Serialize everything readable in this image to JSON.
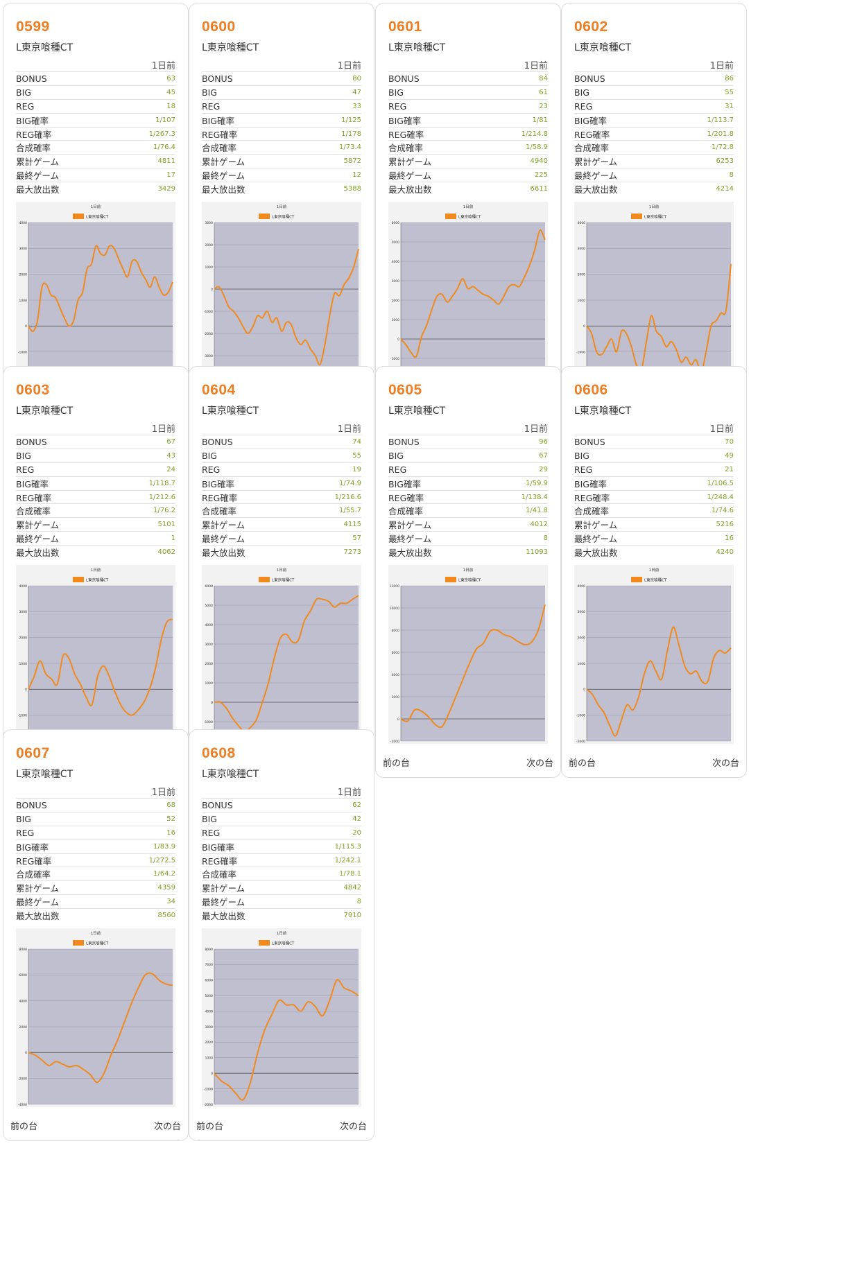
{
  "labels": {
    "day": "1日前",
    "prev": "前の台",
    "next": "次の台",
    "row_labels": [
      "BONUS",
      "BIG",
      "REG",
      "BIG確率",
      "REG確率",
      "合成確率",
      "累計ゲーム",
      "最終ゲーム",
      "最大放出数"
    ]
  },
  "colors": {
    "accent": "#ef7d22",
    "value": "#7ea423",
    "plot_bg": "#c0bfcf",
    "line": "#f08a1e"
  },
  "machines": [
    {
      "num": "0599",
      "model": "L東京喰種CT",
      "stats": [
        "63",
        "45",
        "18",
        "1/107",
        "1/267.3",
        "1/76.4",
        "4811",
        "17",
        "3429"
      ],
      "chart": {
        "title": "1日前",
        "legend": "L東京喰種CT",
        "ymin": -2000,
        "ymax": 4000,
        "step": 1000,
        "values": [
          0,
          -200,
          200,
          1500,
          1600,
          1200,
          1100,
          700,
          300,
          0,
          200,
          1000,
          1300,
          2200,
          2400,
          3100,
          2800,
          2750,
          3100,
          3000,
          2600,
          2200,
          1900,
          2500,
          2500,
          2100,
          1800,
          1500,
          1900,
          1500,
          1200,
          1300,
          1700
        ]
      }
    },
    {
      "num": "0600",
      "model": "L東京喰種CT",
      "stats": [
        "80",
        "47",
        "33",
        "1/125",
        "1/178",
        "1/73.4",
        "5872",
        "12",
        "5388"
      ],
      "chart": {
        "title": "1日前",
        "legend": "L東京喰種CT",
        "ymin": -4000,
        "ymax": 3000,
        "step": 1000,
        "values": [
          0,
          100,
          -300,
          -800,
          -1000,
          -1300,
          -1700,
          -2000,
          -1700,
          -1200,
          -1300,
          -1000,
          -1500,
          -1300,
          -1900,
          -1500,
          -1600,
          -2200,
          -2500,
          -2300,
          -2700,
          -3000,
          -3400,
          -2500,
          -1200,
          -200,
          -300,
          200,
          500,
          1000,
          1800
        ]
      }
    },
    {
      "num": "0601",
      "model": "L東京喰種CT",
      "stats": [
        "84",
        "61",
        "23",
        "1/81",
        "1/214.8",
        "1/58.9",
        "4940",
        "225",
        "6611"
      ],
      "chart": {
        "title": "1日前",
        "legend": "L東京喰種CT",
        "ymin": -2000,
        "ymax": 6000,
        "step": 1000,
        "values": [
          0,
          -300,
          -700,
          -900,
          100,
          700,
          1500,
          2200,
          2300,
          1900,
          2200,
          2600,
          3100,
          2600,
          2700,
          2500,
          2300,
          2200,
          2000,
          1800,
          2200,
          2700,
          2800,
          2700,
          3200,
          3800,
          4600,
          5600,
          5100
        ]
      }
    },
    {
      "num": "0602",
      "model": "L東京喰種CT",
      "stats": [
        "86",
        "55",
        "31",
        "1/113.7",
        "1/201.8",
        "1/72.8",
        "6253",
        "8",
        "4214"
      ],
      "chart": {
        "title": "1日前",
        "legend": "L東京喰種CT",
        "ymin": -2000,
        "ymax": 4000,
        "step": 1000,
        "values": [
          0,
          -300,
          -1000,
          -1100,
          -800,
          -500,
          -1000,
          -200,
          -300,
          -800,
          -1500,
          -1700,
          -600,
          400,
          -200,
          -400,
          -800,
          -600,
          -900,
          -1400,
          -1200,
          -1500,
          -1300,
          -1800,
          -1000,
          0,
          200,
          500,
          600,
          2400
        ]
      }
    },
    {
      "num": "0603",
      "model": "L東京喰種CT",
      "stats": [
        "67",
        "43",
        "24",
        "1/118.7",
        "1/212.6",
        "1/76.2",
        "5101",
        "1",
        "4062"
      ],
      "chart": {
        "title": "1日前",
        "legend": "L東京喰種CT",
        "ymin": -2000,
        "ymax": 4000,
        "step": 1000,
        "values": [
          0,
          500,
          1100,
          600,
          400,
          200,
          1300,
          1200,
          600,
          200,
          -300,
          -600,
          500,
          900,
          500,
          -100,
          -600,
          -900,
          -1000,
          -800,
          -500,
          0,
          800,
          1900,
          2600,
          2700
        ]
      }
    },
    {
      "num": "0604",
      "model": "L東京喰種CT",
      "stats": [
        "74",
        "55",
        "19",
        "1/74.9",
        "1/216.6",
        "1/55.7",
        "4115",
        "57",
        "7273"
      ],
      "chart": {
        "title": "1日前",
        "legend": "L東京喰種CT",
        "ymin": -2000,
        "ymax": 6000,
        "step": 1000,
        "values": [
          0,
          0,
          -300,
          -800,
          -1200,
          -1500,
          -1300,
          -900,
          0,
          1000,
          2300,
          3300,
          3500,
          3100,
          3200,
          4200,
          4700,
          5300,
          5300,
          5200,
          4900,
          5100,
          5100,
          5300,
          5500
        ]
      }
    },
    {
      "num": "0605",
      "model": "L東京喰種CT",
      "stats": [
        "96",
        "67",
        "29",
        "1/59.9",
        "1/138.4",
        "1/41.8",
        "4012",
        "8",
        "11093"
      ],
      "chart": {
        "title": "1日前",
        "legend": "L東京喰種CT",
        "ymin": -2000,
        "ymax": 12000,
        "step": 2000,
        "values": [
          0,
          -200,
          800,
          700,
          200,
          -500,
          -700,
          500,
          2000,
          3500,
          5000,
          6300,
          6800,
          7900,
          8000,
          7600,
          7400,
          7000,
          6700,
          6900,
          8000,
          10300
        ]
      }
    },
    {
      "num": "0606",
      "model": "L東京喰種CT",
      "stats": [
        "70",
        "49",
        "21",
        "1/106.5",
        "1/248.4",
        "1/74.6",
        "5216",
        "16",
        "4240"
      ],
      "chart": {
        "title": "1日前",
        "legend": "L東京喰種CT",
        "ymin": -2000,
        "ymax": 4000,
        "step": 1000,
        "values": [
          0,
          -200,
          -600,
          -900,
          -1400,
          -1800,
          -1200,
          -600,
          -800,
          -300,
          600,
          1100,
          700,
          400,
          1500,
          2400,
          1700,
          900,
          600,
          700,
          300,
          300,
          1200,
          1500,
          1400,
          1600
        ]
      }
    },
    {
      "num": "0607",
      "model": "L東京喰種CT",
      "stats": [
        "68",
        "52",
        "16",
        "1/83.9",
        "1/272.5",
        "1/64.2",
        "4359",
        "34",
        "8560"
      ],
      "chart": {
        "title": "1日前",
        "legend": "L東京喰種CT",
        "ymin": -4000,
        "ymax": 8000,
        "step": 2000,
        "values": [
          0,
          -200,
          -600,
          -1000,
          -700,
          -900,
          -1100,
          -1000,
          -1300,
          -1700,
          -2300,
          -1600,
          -200,
          1000,
          2400,
          3800,
          5000,
          6000,
          6100,
          5600,
          5300,
          5200
        ]
      }
    },
    {
      "num": "0608",
      "model": "L東京喰種CT",
      "stats": [
        "62",
        "42",
        "20",
        "1/115.3",
        "1/242.1",
        "1/78.1",
        "4842",
        "8",
        "7910"
      ],
      "chart": {
        "title": "1日前",
        "legend": "L東京喰種CT",
        "ymin": -2000,
        "ymax": 8000,
        "step": 1000,
        "values": [
          0,
          -500,
          -800,
          -1300,
          -1700,
          -600,
          1300,
          2800,
          3800,
          4700,
          4400,
          4400,
          4000,
          4600,
          4300,
          3700,
          4700,
          6000,
          5500,
          5300,
          5000
        ]
      }
    }
  ]
}
